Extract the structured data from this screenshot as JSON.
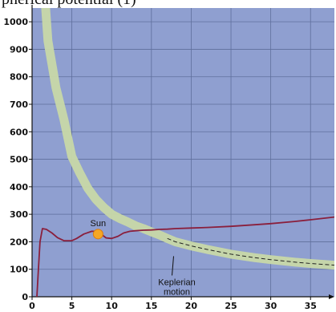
{
  "top_caption": "pherical potential (1)",
  "chart_data": {
    "type": "line",
    "xlim": [
      0,
      38
    ],
    "ylim": [
      0,
      1050
    ],
    "x_ticks": [
      0,
      5,
      10,
      15,
      20,
      25,
      30,
      35
    ],
    "y_ticks": [
      0,
      100,
      200,
      300,
      400,
      500,
      600,
      700,
      800,
      900,
      1000
    ],
    "grid": true,
    "background_color": "#8f9fd0",
    "series": [
      {
        "color": "#8a1f3c",
        "points": [
          [
            0.6,
            0
          ],
          [
            0.8,
            100
          ],
          [
            1.0,
            200
          ],
          [
            1.3,
            248
          ],
          [
            1.8,
            245
          ],
          [
            2.5,
            232
          ],
          [
            3.2,
            215
          ],
          [
            4.0,
            204
          ],
          [
            5.0,
            204
          ],
          [
            5.6,
            212
          ],
          [
            6.5,
            228
          ],
          [
            7.5,
            238
          ],
          [
            8.2,
            238
          ],
          [
            8.8,
            225
          ],
          [
            9.3,
            214
          ],
          [
            10.0,
            212
          ],
          [
            10.8,
            220
          ],
          [
            11.5,
            232
          ],
          [
            12.3,
            238
          ],
          [
            13.0,
            240
          ],
          [
            14.0,
            242
          ],
          [
            15.0,
            243
          ],
          [
            16.0,
            245
          ],
          [
            17.0,
            246
          ],
          [
            18.0,
            248
          ],
          [
            20.0,
            250
          ],
          [
            22.0,
            252
          ],
          [
            25.0,
            256
          ],
          [
            28.0,
            262
          ],
          [
            30.0,
            266
          ],
          [
            33.0,
            274
          ],
          [
            35.0,
            280
          ],
          [
            38.0,
            290
          ]
        ]
      },
      {
        "color": "#c8d8a8",
        "points": [
          [
            1.7,
            1050
          ],
          [
            2.0,
            930
          ],
          [
            3.0,
            760
          ],
          [
            4.0,
            645
          ],
          [
            5.0,
            510
          ],
          [
            6.0,
            450
          ],
          [
            7.0,
            395
          ],
          [
            8.0,
            355
          ],
          [
            9.0,
            325
          ],
          [
            10.0,
            300
          ],
          [
            11.0,
            285
          ],
          [
            12.0,
            272
          ],
          [
            13.0,
            258
          ],
          [
            14.0,
            248
          ],
          [
            15.0,
            236
          ],
          [
            16.0,
            225
          ],
          [
            17.0,
            212
          ],
          [
            18.0,
            200
          ],
          [
            20.0,
            185
          ],
          [
            22.0,
            172
          ],
          [
            25.0,
            155
          ],
          [
            28.0,
            142
          ],
          [
            30.0,
            135
          ],
          [
            33.0,
            126
          ],
          [
            35.0,
            121
          ],
          [
            38.0,
            115
          ]
        ]
      }
    ],
    "annotations": [
      {
        "text": "Sun",
        "x": 8.3,
        "y": 228,
        "marker_color": "#f5a623"
      },
      {
        "text": "Keplerian\nmotion",
        "line1": "Keplerian",
        "line2": "motion",
        "x": 19,
        "y": 165
      }
    ]
  }
}
